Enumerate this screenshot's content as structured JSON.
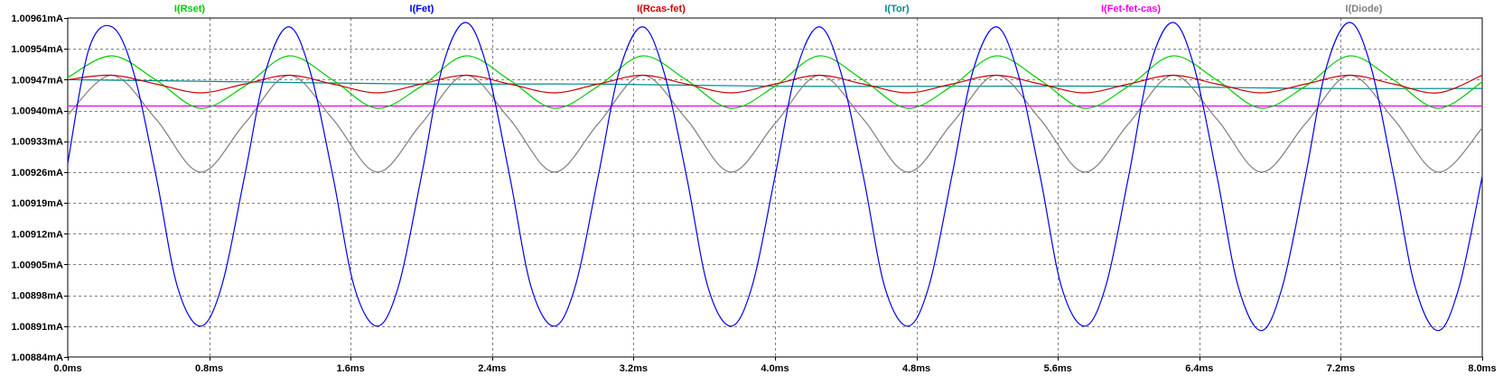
{
  "chart_data": {
    "type": "line",
    "xunit": "ms",
    "x_range": [
      0,
      8
    ],
    "ylim": [
      1.00884,
      1.00961
    ],
    "x_ticks": [
      {
        "value": 0.0,
        "label": "0.0ms"
      },
      {
        "value": 0.8,
        "label": "0.8ms"
      },
      {
        "value": 1.6,
        "label": "1.6ms"
      },
      {
        "value": 2.4,
        "label": "2.4ms"
      },
      {
        "value": 3.2,
        "label": "3.2ms"
      },
      {
        "value": 4.0,
        "label": "4.0ms"
      },
      {
        "value": 4.8,
        "label": "4.8ms"
      },
      {
        "value": 5.6,
        "label": "5.6ms"
      },
      {
        "value": 6.4,
        "label": "6.4ms"
      },
      {
        "value": 7.2,
        "label": "7.2ms"
      },
      {
        "value": 8.0,
        "label": "8.0ms"
      }
    ],
    "y_ticks": [
      {
        "value": 1.00961,
        "label": "1.00961mA"
      },
      {
        "value": 1.00954,
        "label": "1.00954mA"
      },
      {
        "value": 1.00947,
        "label": "1.00947mA"
      },
      {
        "value": 1.0094,
        "label": "1.00940mA"
      },
      {
        "value": 1.00933,
        "label": "1.00933mA"
      },
      {
        "value": 1.00926,
        "label": "1.00926mA"
      },
      {
        "value": 1.00919,
        "label": "1.00919mA"
      },
      {
        "value": 1.00912,
        "label": "1.00912mA"
      },
      {
        "value": 1.00905,
        "label": "1.00905mA"
      },
      {
        "value": 1.00898,
        "label": "1.00898mA"
      },
      {
        "value": 1.00891,
        "label": "1.00891mA"
      },
      {
        "value": 1.00884,
        "label": "1.00884mA"
      }
    ],
    "grid": true,
    "legend_placement": "top",
    "series": [
      {
        "name": "I(Rset)",
        "color": "#00cc00",
        "x": [
          0.0,
          0.25,
          0.5,
          0.75,
          1.0,
          1.25,
          1.5,
          1.75,
          2.0,
          2.25,
          2.5,
          2.75,
          3.0,
          3.25,
          3.5,
          3.75,
          4.0,
          4.25,
          4.5,
          4.75,
          5.0,
          5.25,
          5.5,
          5.75,
          6.0,
          6.25,
          6.5,
          6.75,
          7.0,
          7.25,
          7.5,
          7.75,
          8.0
        ],
        "y": [
          1.009475,
          1.009524,
          1.009469,
          1.009405,
          1.009455,
          1.009524,
          1.009469,
          1.009405,
          1.009455,
          1.009524,
          1.009469,
          1.009405,
          1.009455,
          1.009524,
          1.009469,
          1.009405,
          1.009455,
          1.009524,
          1.009469,
          1.009405,
          1.009455,
          1.009524,
          1.009469,
          1.009405,
          1.009455,
          1.009524,
          1.009469,
          1.009405,
          1.009455,
          1.009524,
          1.009469,
          1.009405,
          1.009465
        ]
      },
      {
        "name": "I(Fet)",
        "color": "#0000ee",
        "x": [
          0.0,
          0.12,
          0.25,
          0.37,
          0.5,
          0.62,
          0.75,
          0.87,
          1.0,
          1.12,
          1.25,
          1.37,
          1.5,
          1.62,
          1.75,
          1.87,
          2.0,
          2.12,
          2.25,
          2.37,
          2.5,
          2.62,
          2.75,
          2.87,
          3.0,
          3.12,
          3.25,
          3.37,
          3.5,
          3.62,
          3.75,
          3.87,
          4.0,
          4.12,
          4.25,
          4.37,
          4.5,
          4.62,
          4.75,
          4.87,
          5.0,
          5.12,
          5.25,
          5.37,
          5.5,
          5.62,
          5.75,
          5.87,
          6.0,
          6.12,
          6.25,
          6.37,
          6.5,
          6.62,
          6.75,
          6.87,
          7.0,
          7.12,
          7.25,
          7.37,
          7.5,
          7.62,
          7.75,
          7.87,
          8.0
        ],
        "y": [
          1.00928,
          1.00954,
          1.00959,
          1.00949,
          1.00925,
          1.009,
          1.00891,
          1.009,
          1.00925,
          1.00949,
          1.00959,
          1.00949,
          1.00925,
          1.009,
          1.00891,
          1.009,
          1.00925,
          1.0095,
          1.0096,
          1.0095,
          1.00925,
          1.009,
          1.00891,
          1.009,
          1.00925,
          1.00949,
          1.00959,
          1.00949,
          1.00925,
          1.009,
          1.00891,
          1.009,
          1.00925,
          1.00949,
          1.00959,
          1.00949,
          1.00925,
          1.009,
          1.00891,
          1.009,
          1.00925,
          1.00949,
          1.00959,
          1.00949,
          1.00925,
          1.009,
          1.00891,
          1.009,
          1.00925,
          1.0095,
          1.0096,
          1.0095,
          1.00925,
          1.009,
          1.0089,
          1.009,
          1.00925,
          1.0095,
          1.0096,
          1.0095,
          1.00925,
          1.009,
          1.0089,
          1.009,
          1.00925
        ]
      },
      {
        "name": "I(Rcas-fet)",
        "color": "#cc0000",
        "x": [
          0.0,
          0.25,
          0.5,
          0.75,
          1.0,
          1.25,
          1.5,
          1.75,
          2.0,
          2.25,
          2.5,
          2.75,
          3.0,
          3.25,
          3.5,
          3.75,
          4.0,
          4.25,
          4.5,
          4.75,
          5.0,
          5.25,
          5.5,
          5.75,
          6.0,
          6.25,
          6.5,
          6.75,
          7.0,
          7.25,
          7.5,
          7.75,
          8.0
        ],
        "y": [
          1.00947,
          1.00948,
          1.00946,
          1.00944,
          1.00946,
          1.00948,
          1.00946,
          1.00944,
          1.00946,
          1.00948,
          1.00946,
          1.00944,
          1.00946,
          1.00948,
          1.00946,
          1.00944,
          1.00946,
          1.00948,
          1.00946,
          1.00944,
          1.00946,
          1.00948,
          1.00946,
          1.00944,
          1.00946,
          1.00948,
          1.00946,
          1.00944,
          1.00946,
          1.00948,
          1.00946,
          1.00944,
          1.00948
        ]
      },
      {
        "name": "I(Tor)",
        "color": "#008b8b",
        "x": [
          0.0,
          1.0,
          2.0,
          3.0,
          4.0,
          5.0,
          6.0,
          7.0,
          8.0
        ],
        "y": [
          1.00947,
          1.009465,
          1.00946,
          1.00946,
          1.009455,
          1.009455,
          1.009455,
          1.00945,
          1.00945
        ]
      },
      {
        "name": "I(Fet-fet-cas)",
        "color": "#ee00ee",
        "x": [
          0.0,
          8.0
        ],
        "y": [
          1.00941,
          1.00941
        ]
      },
      {
        "name": "I(Diode)",
        "color": "#808080",
        "x": [
          0.0,
          0.25,
          0.5,
          0.75,
          1.0,
          1.25,
          1.5,
          1.75,
          2.0,
          2.25,
          2.5,
          2.75,
          3.0,
          3.25,
          3.5,
          3.75,
          4.0,
          4.25,
          4.5,
          4.75,
          5.0,
          5.25,
          5.5,
          5.75,
          6.0,
          6.25,
          6.5,
          6.75,
          7.0,
          7.25,
          7.5,
          7.75,
          8.0
        ],
        "y": [
          1.00939,
          1.00948,
          1.00938,
          1.00926,
          1.00937,
          1.00948,
          1.00938,
          1.00926,
          1.00937,
          1.00948,
          1.00938,
          1.00926,
          1.00937,
          1.00948,
          1.00938,
          1.00926,
          1.00937,
          1.00948,
          1.00938,
          1.00926,
          1.00937,
          1.00948,
          1.00938,
          1.00926,
          1.00937,
          1.00948,
          1.00938,
          1.00926,
          1.00937,
          1.00948,
          1.00938,
          1.00926,
          1.00936
        ]
      }
    ]
  }
}
